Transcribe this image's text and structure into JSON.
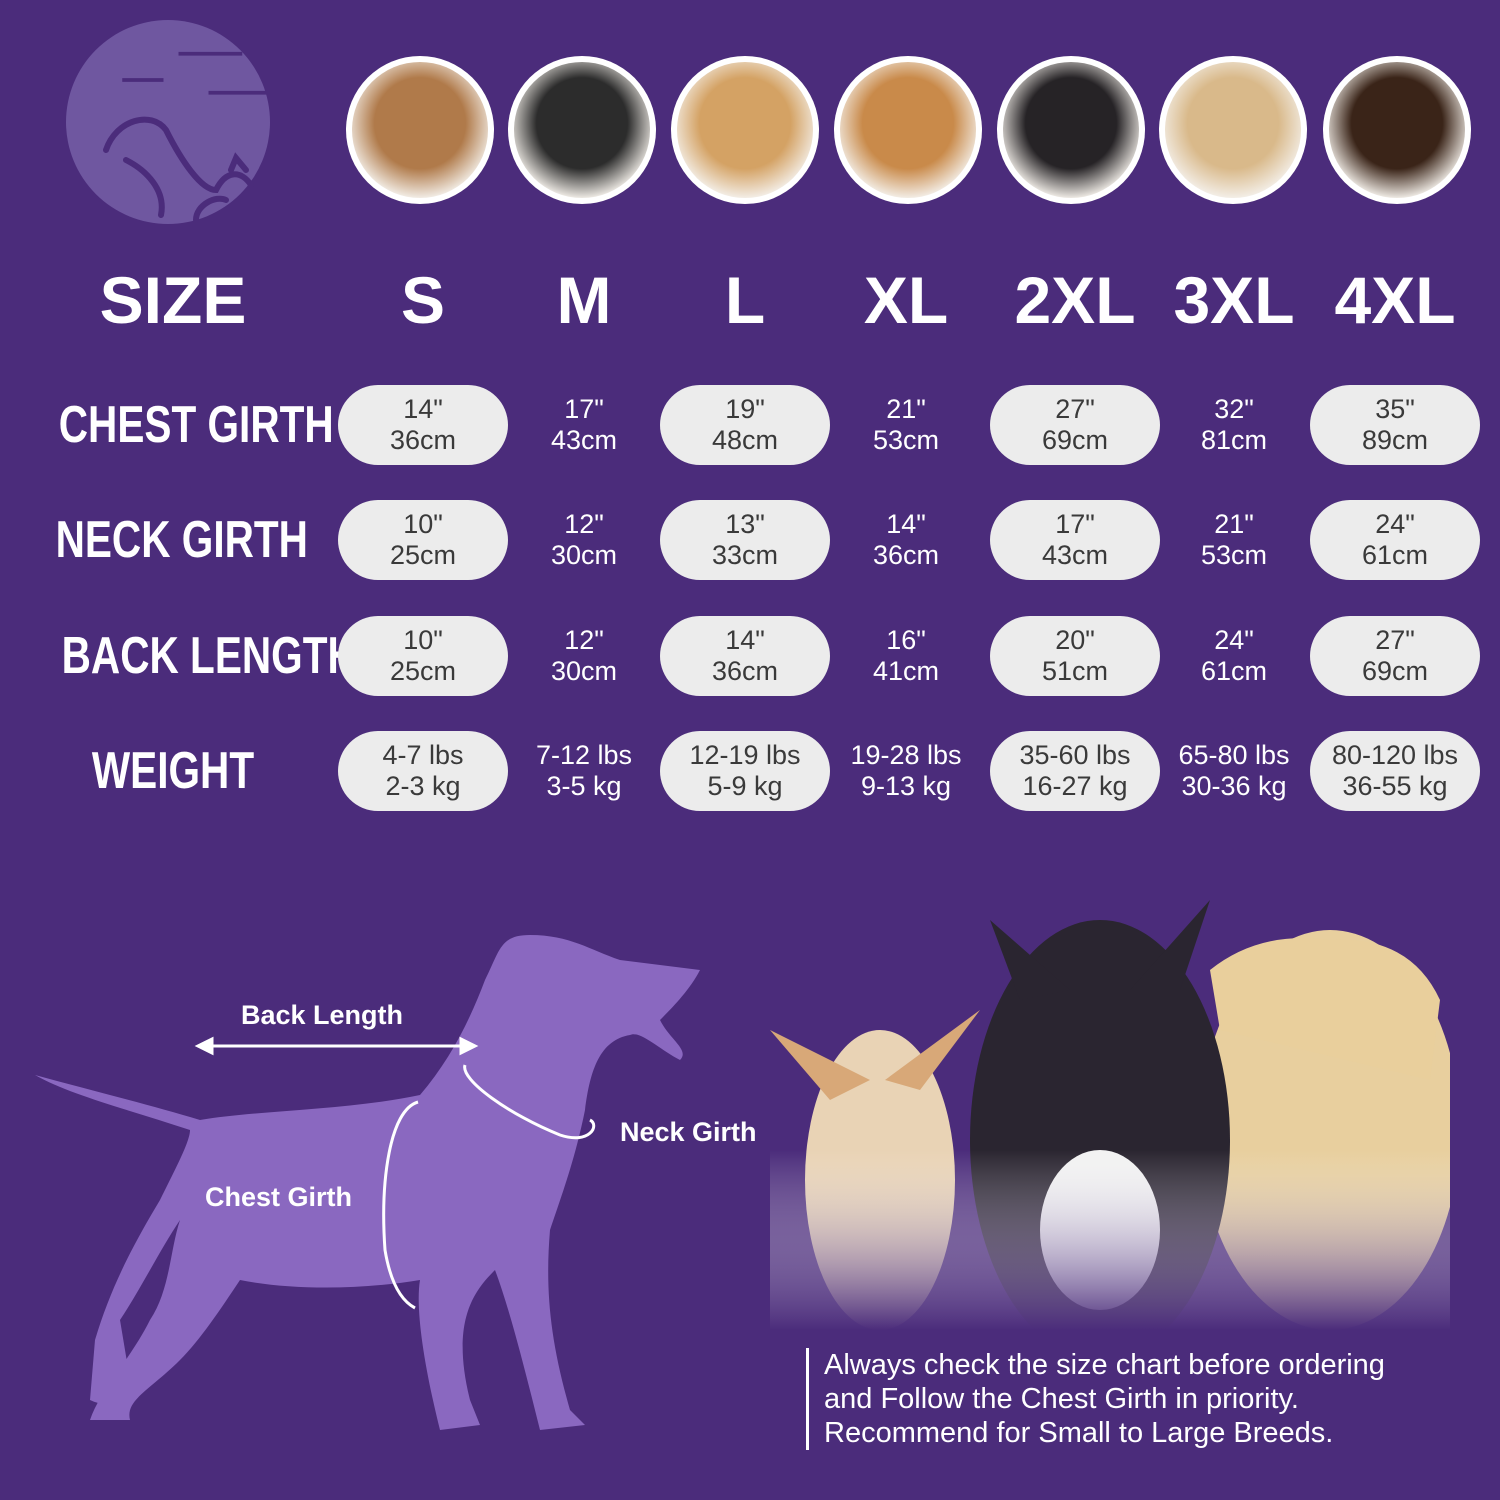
{
  "colors": {
    "background": "#4b2c7b",
    "pill": "#ececec",
    "silhouette": "#8a68c0",
    "logo": "#6f57a0"
  },
  "logo_icon": "dog-and-cat-logo",
  "breed_photos": [
    "shih-tzu",
    "boston-terrier",
    "cocker-spaniel",
    "beagle",
    "border-collie",
    "labrador",
    "doberman"
  ],
  "header": {
    "size_label": "SIZE",
    "sizes": [
      "S",
      "M",
      "L",
      "XL",
      "2XL",
      "3XL",
      "4XL"
    ]
  },
  "rows": [
    {
      "label": "CHEST GIRTH",
      "values": [
        [
          "14\"",
          "36cm"
        ],
        [
          "17\"",
          "43cm"
        ],
        [
          "19\"",
          "48cm"
        ],
        [
          "21\"",
          "53cm"
        ],
        [
          "27\"",
          "69cm"
        ],
        [
          "32\"",
          "81cm"
        ],
        [
          "35\"",
          "89cm"
        ]
      ]
    },
    {
      "label": "NECK GIRTH",
      "values": [
        [
          "10\"",
          "25cm"
        ],
        [
          "12\"",
          "30cm"
        ],
        [
          "13\"",
          "33cm"
        ],
        [
          "14\"",
          "36cm"
        ],
        [
          "17\"",
          "43cm"
        ],
        [
          "21\"",
          "53cm"
        ],
        [
          "24\"",
          "61cm"
        ]
      ]
    },
    {
      "label": "BACK LENGTH",
      "values": [
        [
          "10\"",
          "25cm"
        ],
        [
          "12\"",
          "30cm"
        ],
        [
          "14\"",
          "36cm"
        ],
        [
          "16\"",
          "41cm"
        ],
        [
          "20\"",
          "51cm"
        ],
        [
          "24\"",
          "61cm"
        ],
        [
          "27\"",
          "69cm"
        ]
      ]
    },
    {
      "label": "WEIGHT",
      "values": [
        [
          "4-7 lbs",
          "2-3 kg"
        ],
        [
          "7-12 lbs",
          "3-5 kg"
        ],
        [
          "12-19 lbs",
          "5-9 kg"
        ],
        [
          "19-28 lbs",
          "9-13 kg"
        ],
        [
          "35-60 lbs",
          "16-27 kg"
        ],
        [
          "65-80 lbs",
          "30-36 kg"
        ],
        [
          "80-120 lbs",
          "36-55 kg"
        ]
      ]
    }
  ],
  "diagram": {
    "back_length": "Back Length",
    "neck_girth": "Neck Girth",
    "chest_girth": "Chest Girth"
  },
  "note": {
    "lines": [
      "Always check the size chart before ordering",
      "and Follow the Chest Girth in priority.",
      "Recommend for Small to Large Breeds."
    ]
  }
}
